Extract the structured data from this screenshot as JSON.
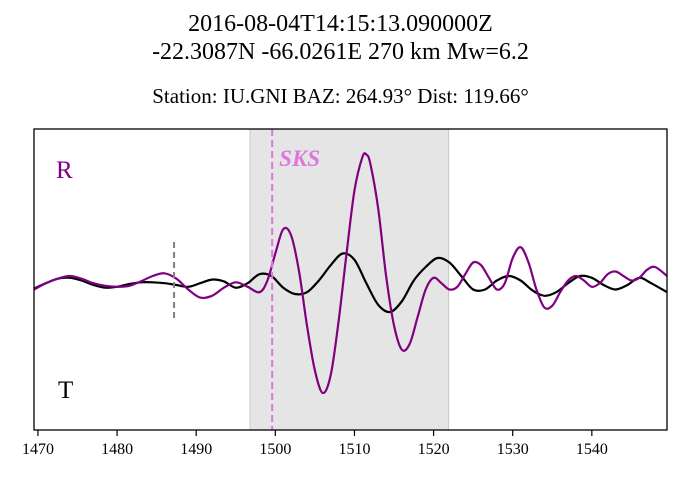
{
  "header": {
    "line1": "2016-08-04T14:15:13.090000Z",
    "line2": "-22.3087N -66.0261E 270 km  Mw=6.2",
    "station_line": "Station: IU.GNI  BAZ: 264.93° Dist: 119.66°"
  },
  "chart_data": {
    "type": "line",
    "xlim": [
      1469.5,
      1549.5
    ],
    "x_ticks": [
      1470,
      1480,
      1490,
      1500,
      1510,
      1520,
      1530,
      1540
    ],
    "grid": false,
    "y_ticks_shown": false,
    "shaded_window": [
      1496.8,
      1521.9
    ],
    "phase": {
      "label": "SKS",
      "time": 1499.6,
      "color": "#dd77dd"
    },
    "marker_time": 1487.2,
    "trace_labels": {
      "R": "R",
      "T": "T"
    },
    "colors": {
      "R": "#800080",
      "T": "#000000",
      "window": "#e5e5e5",
      "marker": "#808080"
    },
    "series": [
      {
        "name": "R",
        "x": [
          1469.5,
          1471,
          1472.5,
          1474,
          1475.5,
          1477,
          1478.5,
          1480,
          1481.5,
          1483,
          1484.5,
          1486,
          1487.5,
          1489,
          1490.5,
          1492,
          1493.5,
          1495,
          1496.5,
          1498,
          1499,
          1500,
          1501,
          1502,
          1503,
          1504,
          1505,
          1506,
          1507,
          1508,
          1509,
          1510,
          1511,
          1511.5,
          1512,
          1513,
          1514,
          1515,
          1516,
          1517,
          1518,
          1519,
          1520,
          1521,
          1522,
          1523,
          1524,
          1525,
          1526,
          1527,
          1528,
          1529,
          1530,
          1531,
          1532,
          1533,
          1534,
          1535,
          1536,
          1537,
          1538,
          1539,
          1540,
          1541,
          1542,
          1543,
          1544,
          1545,
          1546,
          1547,
          1548,
          1549.5
        ],
        "y": [
          -0.05,
          0.02,
          0.07,
          0.1,
          0.07,
          0.02,
          -0.01,
          -0.02,
          -0.01,
          0.04,
          0.1,
          0.13,
          0.07,
          -0.05,
          -0.14,
          -0.12,
          -0.03,
          0.03,
          -0.02,
          -0.08,
          0.05,
          0.35,
          0.62,
          0.55,
          0.15,
          -0.45,
          -0.95,
          -1.2,
          -1.0,
          -0.4,
          0.35,
          1.05,
          1.42,
          1.45,
          1.35,
          0.85,
          0.1,
          -0.45,
          -0.72,
          -0.65,
          -0.35,
          -0.05,
          0.08,
          0.02,
          -0.05,
          -0.02,
          0.12,
          0.25,
          0.22,
          0.08,
          -0.05,
          0.02,
          0.3,
          0.42,
          0.25,
          -0.05,
          -0.25,
          -0.23,
          -0.08,
          0.05,
          0.1,
          0.05,
          -0.02,
          0.02,
          0.12,
          0.15,
          0.1,
          0.05,
          0.08,
          0.17,
          0.2,
          0.1
        ]
      },
      {
        "name": "T",
        "x": [
          1469.5,
          1471,
          1472.5,
          1474,
          1475.5,
          1477,
          1478.5,
          1480,
          1481.5,
          1483,
          1484.5,
          1486,
          1487.5,
          1489,
          1490.5,
          1492,
          1493.5,
          1495,
          1496.5,
          1498,
          1499.5,
          1501,
          1502.5,
          1504,
          1505.5,
          1507,
          1508.5,
          1510,
          1511.5,
          1513,
          1514.5,
          1516,
          1517.5,
          1519,
          1520.5,
          1522,
          1523.5,
          1525,
          1526.5,
          1528,
          1529.5,
          1531,
          1532.5,
          1534,
          1535.5,
          1537,
          1538.5,
          1540,
          1541.5,
          1543,
          1544.5,
          1546,
          1547.5,
          1549.5
        ],
        "y": [
          -0.04,
          0.02,
          0.07,
          0.08,
          0.05,
          0.0,
          -0.03,
          -0.02,
          0.01,
          0.03,
          0.03,
          0.02,
          0.0,
          -0.02,
          0.02,
          0.06,
          0.04,
          -0.03,
          0.02,
          0.12,
          0.1,
          -0.03,
          -0.1,
          -0.08,
          0.05,
          0.22,
          0.35,
          0.28,
          0.02,
          -0.22,
          -0.3,
          -0.18,
          0.05,
          0.2,
          0.3,
          0.25,
          0.1,
          -0.05,
          -0.05,
          0.05,
          0.1,
          0.05,
          -0.06,
          -0.12,
          -0.08,
          0.02,
          0.1,
          0.08,
          0.0,
          -0.05,
          0.0,
          0.08,
          0.02,
          -0.08
        ]
      }
    ]
  }
}
